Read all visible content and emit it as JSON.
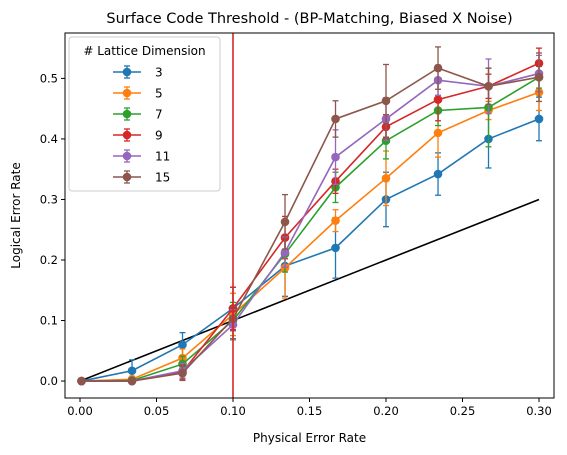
{
  "chart_data": {
    "type": "line",
    "title": "Surface Code Threshold - (BP-Matching, Biased X Noise)",
    "xlabel": "Physical Error Rate",
    "ylabel": "Logical Error Rate",
    "xlim": [
      -0.0098,
      0.3098
    ],
    "ylim": [
      -0.028,
      0.575
    ],
    "xticks": [
      0.0,
      0.05,
      0.1,
      0.15,
      0.2,
      0.25,
      0.3
    ],
    "xtick_labels": [
      "0.00",
      "0.05",
      "0.10",
      "0.15",
      "0.20",
      "0.25",
      "0.30"
    ],
    "yticks": [
      0.0,
      0.1,
      0.2,
      0.3,
      0.4,
      0.5
    ],
    "ytick_labels": [
      "0.0",
      "0.1",
      "0.2",
      "0.3",
      "0.4",
      "0.5"
    ],
    "grid": false,
    "legend": {
      "title": "# Lattice Dimension",
      "placement": "top-left"
    },
    "threshold_line": {
      "x": 0.1,
      "color": "#d62728"
    },
    "reference_line": {
      "x": [
        0.001,
        0.3
      ],
      "y": [
        0.001,
        0.3
      ],
      "color": "#000000"
    },
    "x": [
      0.001,
      0.034,
      0.067,
      0.1,
      0.134,
      0.167,
      0.2,
      0.234,
      0.267,
      0.3
    ],
    "series": [
      {
        "name": "3",
        "color": "#1f77b4",
        "values": [
          0.0,
          0.017,
          0.06,
          0.12,
          0.19,
          0.22,
          0.3,
          0.342,
          0.4,
          0.433
        ],
        "errors": [
          0.001,
          0.018,
          0.02,
          0.035,
          0.05,
          0.05,
          0.045,
          0.035,
          0.048,
          0.036
        ]
      },
      {
        "name": "5",
        "color": "#ff7f0e",
        "values": [
          0.0,
          0.003,
          0.038,
          0.11,
          0.187,
          0.265,
          0.335,
          0.41,
          0.447,
          0.477
        ],
        "errors": [
          0.001,
          0.005,
          0.015,
          0.035,
          0.05,
          0.018,
          0.045,
          0.04,
          0.015,
          0.03
        ]
      },
      {
        "name": "7",
        "color": "#2ca02c",
        "values": [
          0.0,
          0.001,
          0.028,
          0.1,
          0.21,
          0.32,
          0.397,
          0.447,
          0.452,
          0.502
        ],
        "errors": [
          0.001,
          0.003,
          0.013,
          0.03,
          0.03,
          0.025,
          0.03,
          0.025,
          0.065,
          0.018
        ]
      },
      {
        "name": "9",
        "color": "#d62728",
        "values": [
          0.0,
          0.0,
          0.015,
          0.12,
          0.237,
          0.33,
          0.42,
          0.465,
          0.487,
          0.525
        ],
        "errors": [
          0.001,
          0.002,
          0.012,
          0.035,
          0.035,
          0.02,
          0.02,
          0.035,
          0.02,
          0.025
        ]
      },
      {
        "name": "11",
        "color": "#9467bd",
        "values": [
          0.0,
          0.0,
          0.017,
          0.093,
          0.213,
          0.37,
          0.433,
          0.497,
          0.487,
          0.508
        ],
        "errors": [
          0.001,
          0.002,
          0.012,
          0.025,
          0.025,
          0.045,
          0.035,
          0.025,
          0.045,
          0.03
        ]
      },
      {
        "name": "15",
        "color": "#8c564b",
        "values": [
          0.0,
          0.0,
          0.013,
          0.103,
          0.263,
          0.433,
          0.463,
          0.517,
          0.487,
          0.502
        ],
        "errors": [
          0.001,
          0.002,
          0.012,
          0.02,
          0.045,
          0.03,
          0.06,
          0.035,
          0.03,
          0.04
        ]
      }
    ]
  }
}
